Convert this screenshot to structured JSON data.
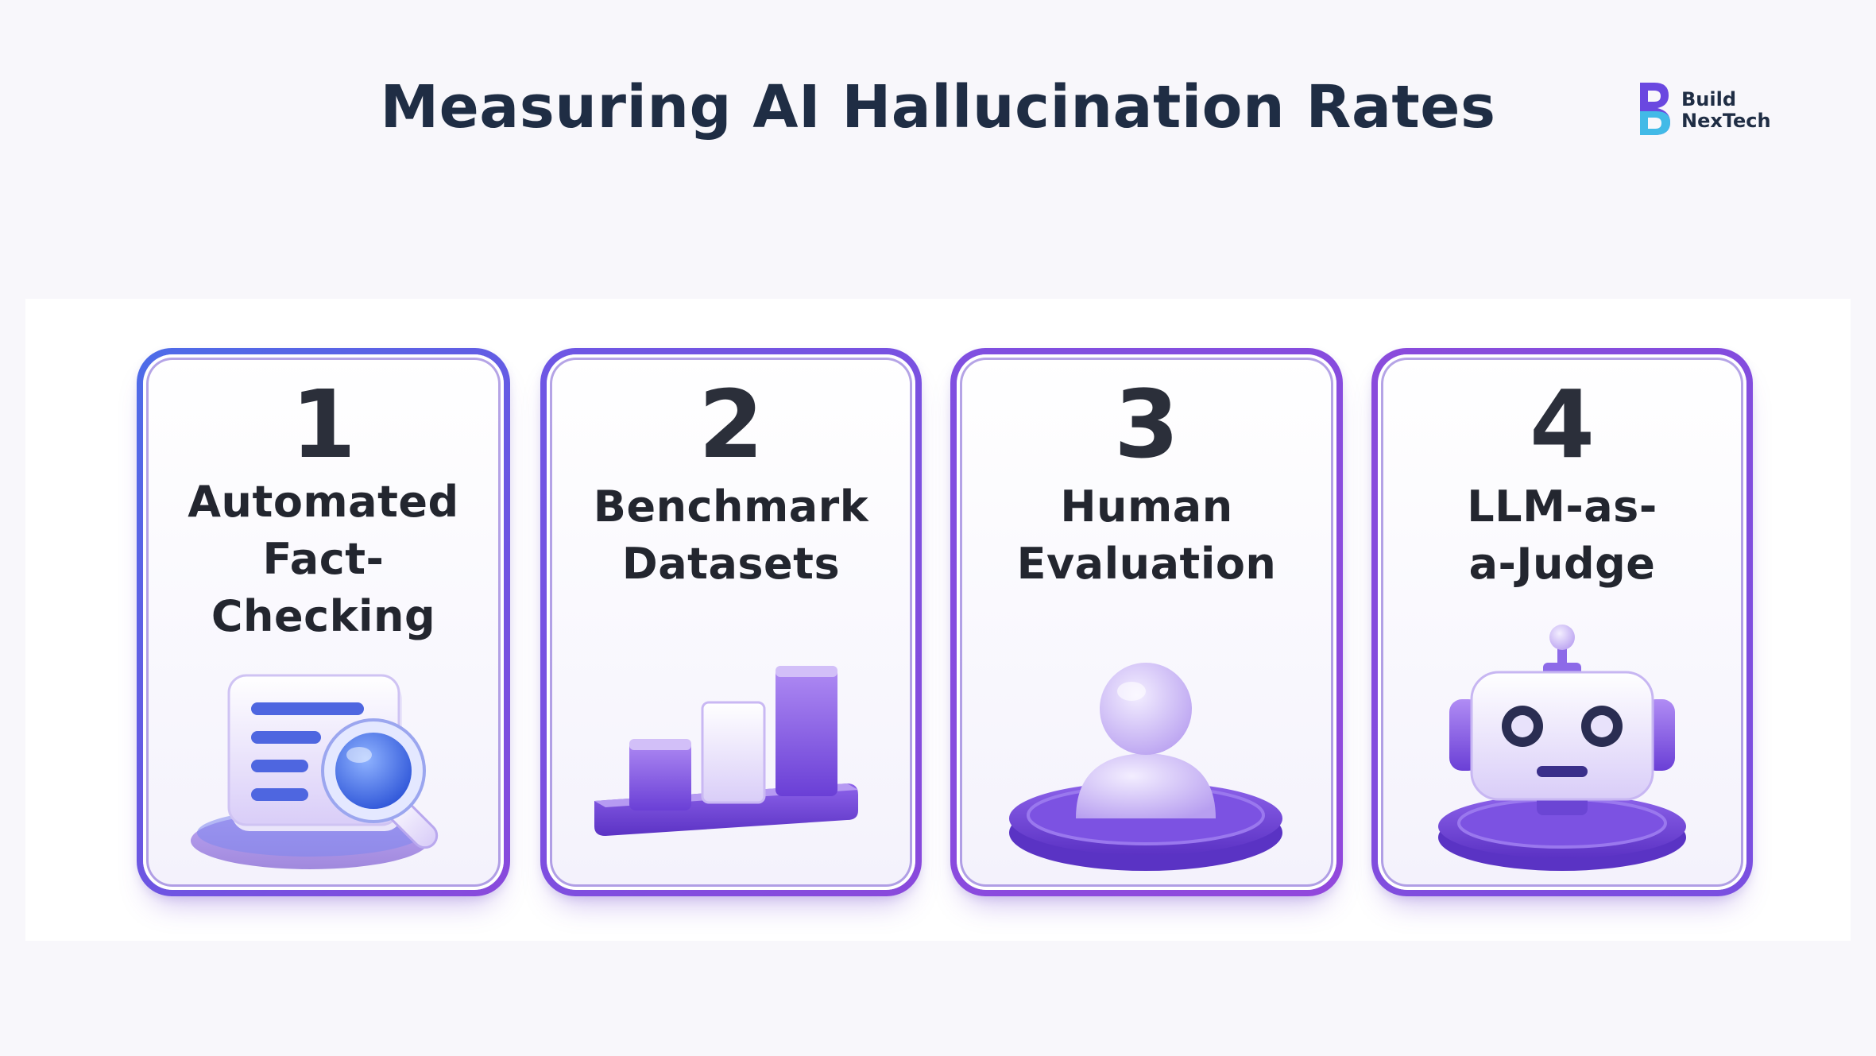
{
  "title": "Measuring AI Hallucination Rates",
  "logo": {
    "line1": "Build",
    "line2": "NexTech"
  },
  "colors": {
    "title": "#1f2d44",
    "card_border_start": "#4f6ae6",
    "card_border_end": "#8b44dc",
    "accent_purple": "#7b4fe0",
    "accent_blue": "#3f63e6"
  },
  "cards": [
    {
      "number": "1",
      "label_lines": [
        "Automated",
        "Fact-",
        "Checking"
      ],
      "icon": "magnifier-document-icon"
    },
    {
      "number": "2",
      "label_lines": [
        "Benchmark",
        "Datasets"
      ],
      "icon": "bar-chart-icon"
    },
    {
      "number": "3",
      "label_lines": [
        "Human",
        "Evaluation"
      ],
      "icon": "person-icon"
    },
    {
      "number": "4",
      "label_lines": [
        "LLM-as-",
        "a-Judge"
      ],
      "icon": "robot-icon"
    }
  ]
}
